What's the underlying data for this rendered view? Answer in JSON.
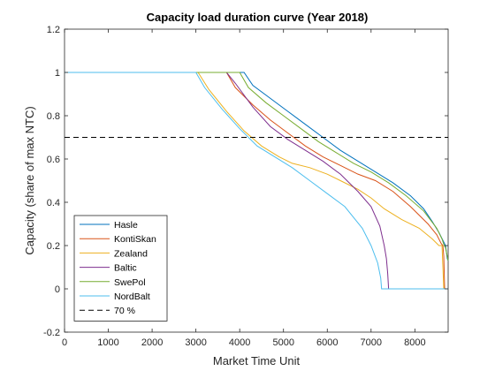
{
  "chart_data": {
    "type": "line",
    "title": "Capacity load duration curve (Year 2018)",
    "xlabel": "Market Time Unit",
    "ylabel": "Capacity (share of max NTC)",
    "xlim": [
      0,
      8760
    ],
    "ylim": [
      -0.2,
      1.2
    ],
    "xticks": [
      0,
      1000,
      2000,
      3000,
      4000,
      5000,
      6000,
      7000,
      8000
    ],
    "yticks": [
      -0.2,
      0,
      0.2,
      0.4,
      0.6,
      0.8,
      1,
      1.2
    ],
    "xtick_labels": [
      "0",
      "1000",
      "2000",
      "3000",
      "4000",
      "5000",
      "6000",
      "7000",
      "8000"
    ],
    "ytick_labels": [
      "-0.2",
      "0",
      "0.2",
      "0.4",
      "0.6",
      "0.8",
      "1",
      "1.2"
    ],
    "grid": false,
    "legend_position": "bottom-left",
    "series": [
      {
        "name": "Hasle",
        "color": "#0072bd",
        "style": "solid",
        "x": [
          0,
          4100,
          4300,
          4700,
          5100,
          5500,
          5900,
          6300,
          6700,
          7100,
          7500,
          7900,
          8200,
          8400,
          8550,
          8650,
          8700,
          8720,
          8740,
          8760
        ],
        "y": [
          1,
          1,
          0.94,
          0.88,
          0.82,
          0.76,
          0.7,
          0.64,
          0.59,
          0.54,
          0.49,
          0.43,
          0.37,
          0.31,
          0.26,
          0.22,
          0.2,
          0.17,
          0.14,
          0.13
        ]
      },
      {
        "name": "KontiSkan",
        "color": "#d95319",
        "style": "solid",
        "x": [
          0,
          3700,
          3900,
          4300,
          4700,
          5100,
          5500,
          5900,
          6300,
          6700,
          7100,
          7500,
          7900,
          8300,
          8500,
          8600,
          8640,
          8660,
          8680,
          8760
        ],
        "y": [
          1,
          1,
          0.93,
          0.85,
          0.78,
          0.72,
          0.66,
          0.61,
          0.57,
          0.53,
          0.5,
          0.45,
          0.38,
          0.3,
          0.25,
          0.21,
          0.2,
          0.15,
          0,
          0
        ]
      },
      {
        "name": "Zealand",
        "color": "#edb120",
        "style": "solid",
        "x": [
          0,
          3050,
          3300,
          3700,
          4100,
          4500,
          4900,
          5200,
          5600,
          6000,
          6300,
          6700,
          7000,
          7300,
          7700,
          8100,
          8400,
          8550,
          8620,
          8660,
          8760
        ],
        "y": [
          1,
          1,
          0.92,
          0.82,
          0.73,
          0.66,
          0.61,
          0.58,
          0.56,
          0.53,
          0.5,
          0.46,
          0.42,
          0.37,
          0.32,
          0.28,
          0.23,
          0.2,
          0.2,
          0,
          0
        ]
      },
      {
        "name": "Baltic",
        "color": "#7e2f8e",
        "style": "solid",
        "x": [
          0,
          3700,
          3900,
          4300,
          4700,
          5100,
          5500,
          5900,
          6300,
          6700,
          7000,
          7200,
          7300,
          7350,
          7380,
          7400
        ],
        "y": [
          1,
          1,
          0.95,
          0.84,
          0.75,
          0.69,
          0.64,
          0.59,
          0.53,
          0.45,
          0.38,
          0.29,
          0.2,
          0.14,
          0.07,
          0
        ]
      },
      {
        "name": "SwePol",
        "color": "#77ac30",
        "style": "solid",
        "x": [
          0,
          4000,
          4200,
          4600,
          5000,
          5400,
          5800,
          6200,
          6600,
          7000,
          7400,
          7800,
          8200,
          8500,
          8620,
          8670,
          8700,
          8720,
          8760
        ],
        "y": [
          1,
          1,
          0.93,
          0.86,
          0.8,
          0.74,
          0.68,
          0.63,
          0.58,
          0.54,
          0.49,
          0.43,
          0.36,
          0.28,
          0.23,
          0.2,
          0.19,
          0.17,
          0.13
        ]
      },
      {
        "name": "NordBalt",
        "color": "#4dbeee",
        "style": "solid",
        "x": [
          0,
          3000,
          3200,
          3600,
          4000,
          4400,
          4800,
          5200,
          5600,
          6000,
          6400,
          6800,
          7000,
          7150,
          7220,
          7240,
          8760
        ],
        "y": [
          1,
          1,
          0.93,
          0.83,
          0.74,
          0.66,
          0.61,
          0.56,
          0.5,
          0.44,
          0.38,
          0.28,
          0.2,
          0.12,
          0.05,
          0,
          0
        ]
      },
      {
        "name": "70 %",
        "color": "#000000",
        "style": "dashed",
        "x": [
          0,
          8760
        ],
        "y": [
          0.7,
          0.7
        ]
      }
    ]
  }
}
